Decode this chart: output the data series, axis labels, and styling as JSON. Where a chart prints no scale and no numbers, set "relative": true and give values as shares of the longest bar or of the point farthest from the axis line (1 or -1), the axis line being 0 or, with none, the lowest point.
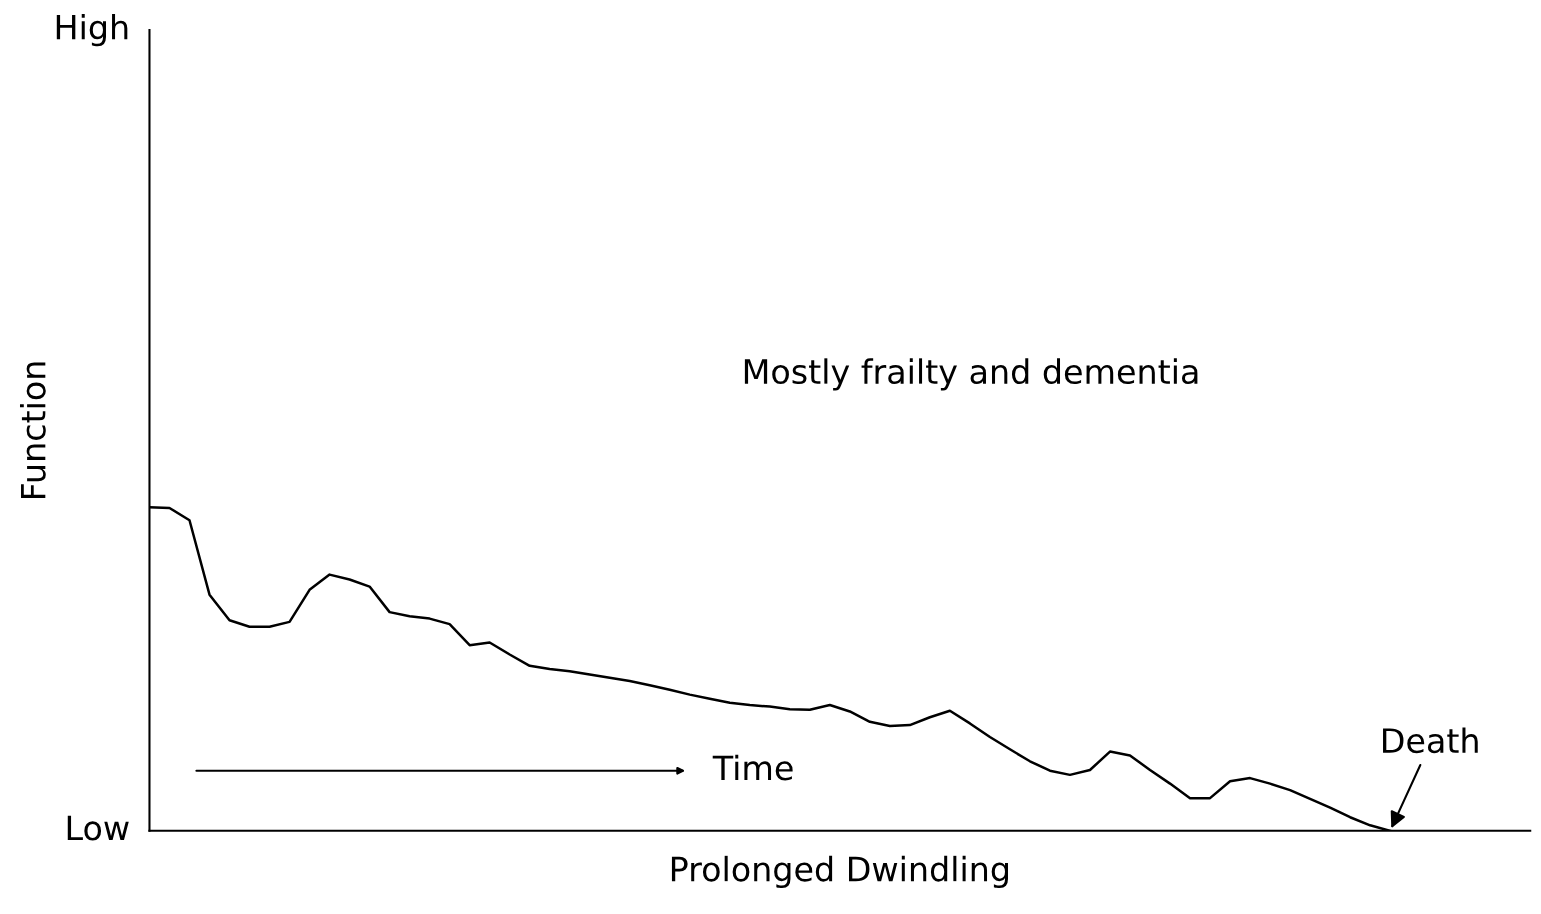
{
  "chart_data": {
    "type": "line",
    "xlabel": "Prolonged Dwindling",
    "ylabel": "Function",
    "relative": true,
    "categories": [
      null,
      null,
      null,
      null,
      null,
      null,
      null,
      null,
      null,
      null,
      null,
      null,
      null,
      null,
      null,
      null,
      null,
      null,
      null,
      null,
      null,
      null,
      null,
      null,
      null,
      null,
      null,
      null,
      null,
      null,
      null,
      null,
      null,
      null,
      null,
      null,
      null,
      null,
      null,
      null,
      null,
      null,
      null,
      null,
      null,
      null,
      null,
      null,
      null,
      null,
      null,
      null,
      null,
      null,
      null,
      null,
      null,
      null,
      null,
      null,
      null,
      null,
      null,
      null,
      null,
      null,
      null,
      null,
      null,
      null
    ],
    "series": [
      {
        "color": "#000000",
        "values": [
          1,
          0.998,
          0.96,
          0.73,
          0.651,
          0.631,
          0.631,
          0.646,
          0.745,
          0.792,
          0.777,
          0.755,
          0.676,
          0.663,
          0.656,
          0.639,
          0.574,
          0.582,
          0.545,
          0.51,
          0.5,
          0.493,
          0.483,
          0.473,
          0.463,
          0.45,
          0.436,
          0.421,
          0.408,
          0.396,
          0.389,
          0.384,
          0.376,
          0.374,
          0.389,
          0.369,
          0.337,
          0.324,
          0.327,
          0.351,
          0.371,
          0.332,
          0.29,
          0.252,
          0.215,
          0.186,
          0.173,
          0.188,
          0.245,
          0.233,
          0.188,
          0.146,
          0.101,
          0.101,
          0.153,
          0.163,
          0.146,
          0.126,
          0.099,
          0.072,
          0.042,
          0.017,
          0,
          null,
          null,
          null,
          null,
          null,
          null,
          null
        ]
      }
    ],
    "tick_labels": false,
    "grid": false,
    "legend": false,
    "marker": "none",
    "line_style": "solid",
    "annotations": [
      "High",
      "Low",
      "Mostly frailty and dementia",
      "Time",
      "Death"
    ]
  }
}
